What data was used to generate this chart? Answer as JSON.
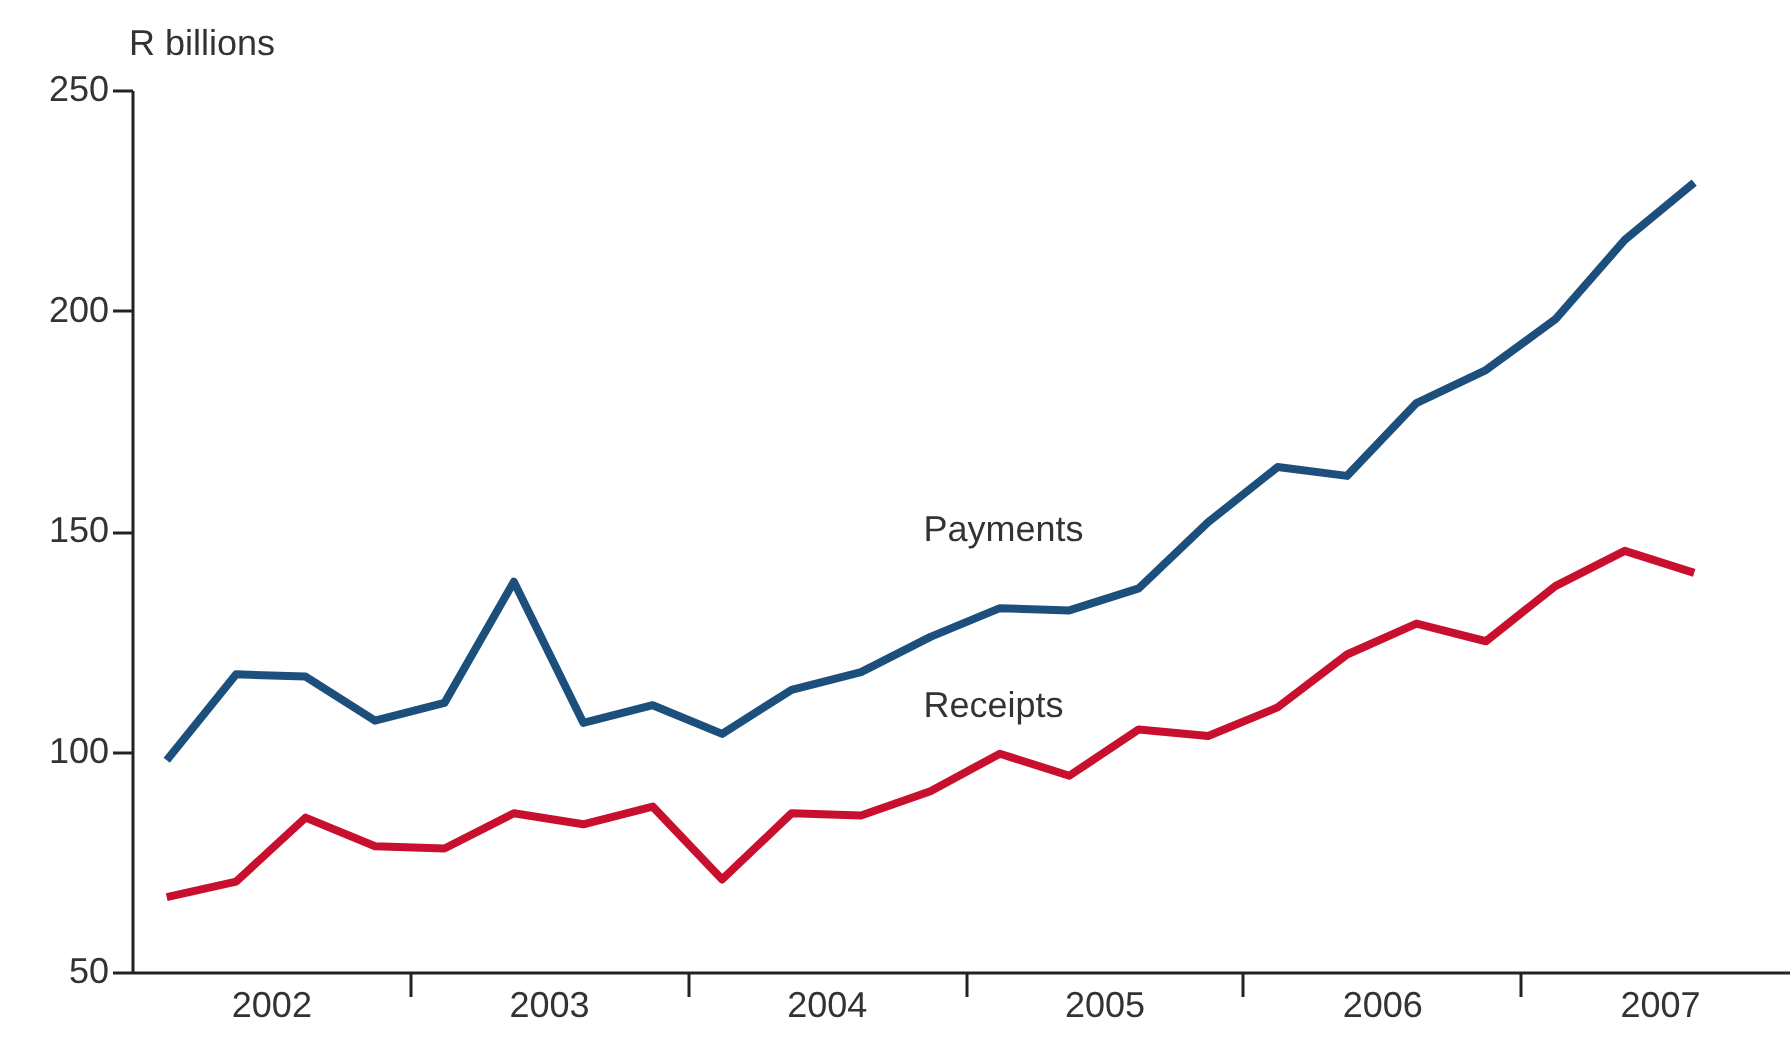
{
  "chart_data": {
    "type": "line",
    "ylabel": "R billions",
    "x": [
      2002.125,
      2002.375,
      2002.625,
      2002.875,
      2003.125,
      2003.375,
      2003.625,
      2003.875,
      2004.125,
      2004.375,
      2004.625,
      2004.875,
      2005.125,
      2005.375,
      2005.625,
      2005.875,
      2006.125,
      2006.375,
      2006.625,
      2006.875,
      2007.125,
      2007.375,
      2007.625
    ],
    "series": [
      {
        "name": "Payments",
        "color": "#1c4f7c",
        "values": [
          98,
          117.5,
          117,
          107,
          111,
          138.5,
          106.5,
          110.5,
          104,
          114,
          118,
          126,
          132.5,
          132,
          137,
          152,
          164.5,
          162.5,
          179,
          186.5,
          198,
          216,
          229
        ]
      },
      {
        "name": "Receipts",
        "color": "#c8102e",
        "values": [
          67,
          70.5,
          85,
          78.5,
          78,
          86,
          83.5,
          87.5,
          71,
          86,
          85.5,
          91,
          99.5,
          94.5,
          105,
          103.5,
          110,
          122,
          129,
          125,
          137.5,
          145.5,
          140.5
        ]
      }
    ],
    "xlim": [
      2002,
      2007.97
    ],
    "xticks": [
      {
        "value": 2002.5,
        "label": "2002"
      },
      {
        "value": 2003,
        "label": null
      },
      {
        "value": 2003.5,
        "label": "2003"
      },
      {
        "value": 2004,
        "label": null
      },
      {
        "value": 2004.5,
        "label": "2004"
      },
      {
        "value": 2005,
        "label": null
      },
      {
        "value": 2005.5,
        "label": "2005"
      },
      {
        "value": 2006,
        "label": null
      },
      {
        "value": 2006.5,
        "label": "2006"
      },
      {
        "value": 2007,
        "label": null
      },
      {
        "value": 2007.5,
        "label": "2007"
      }
    ],
    "ylim": [
      50,
      250
    ],
    "yticks": [
      50,
      100,
      150,
      200,
      250
    ],
    "grid": false,
    "legend": false,
    "marker": "none",
    "line_style": "solid"
  }
}
